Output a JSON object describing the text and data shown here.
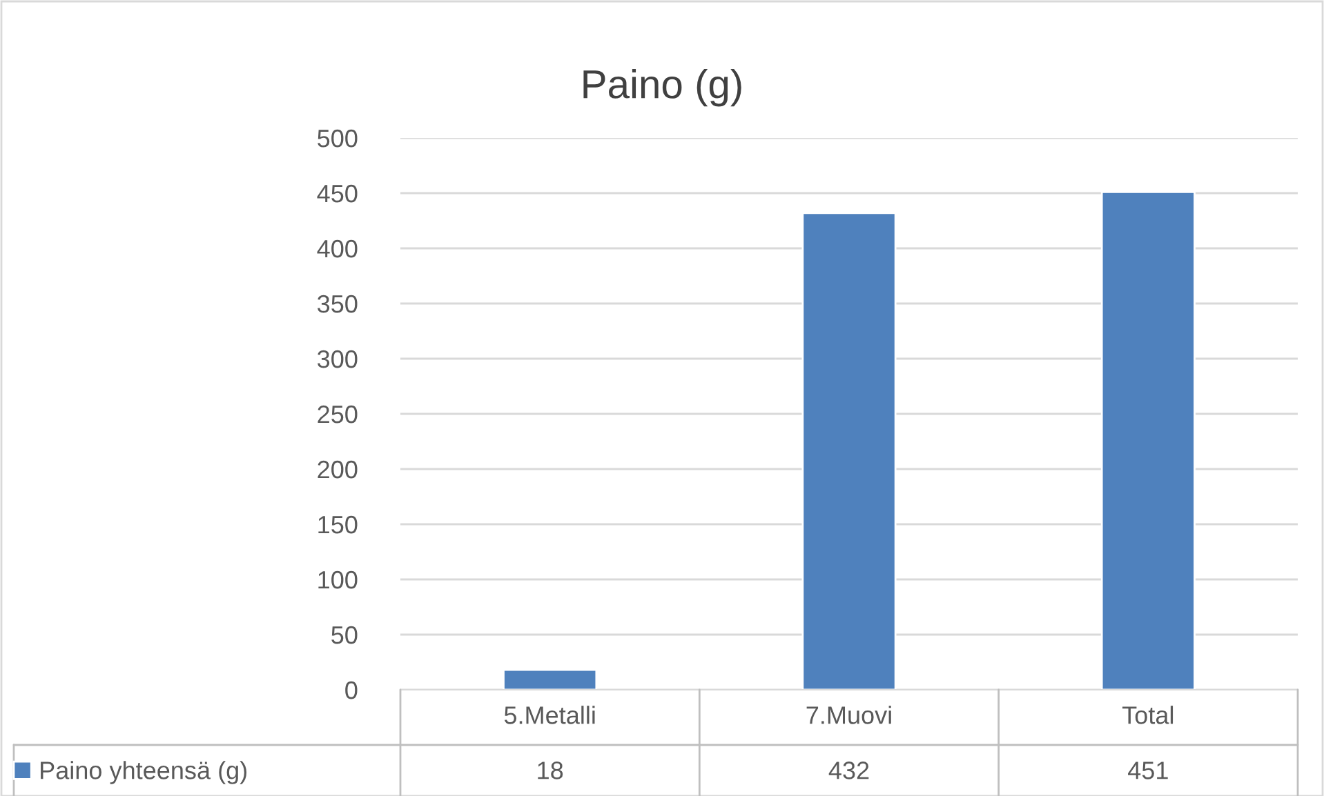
{
  "chart_data": {
    "type": "bar",
    "title": "Paino (g)",
    "categories": [
      "5.Metalli",
      "7.Muovi",
      "Total"
    ],
    "series": [
      {
        "name": "Paino yhteensä (g)",
        "color": "#4f81bd",
        "values": [
          18,
          432,
          451
        ]
      }
    ],
    "ylim": [
      0,
      500
    ],
    "yticks": [
      0,
      50,
      100,
      150,
      200,
      250,
      300,
      350,
      400,
      450,
      500
    ],
    "grid": "y",
    "legend": "bottom",
    "data_labels": true
  }
}
